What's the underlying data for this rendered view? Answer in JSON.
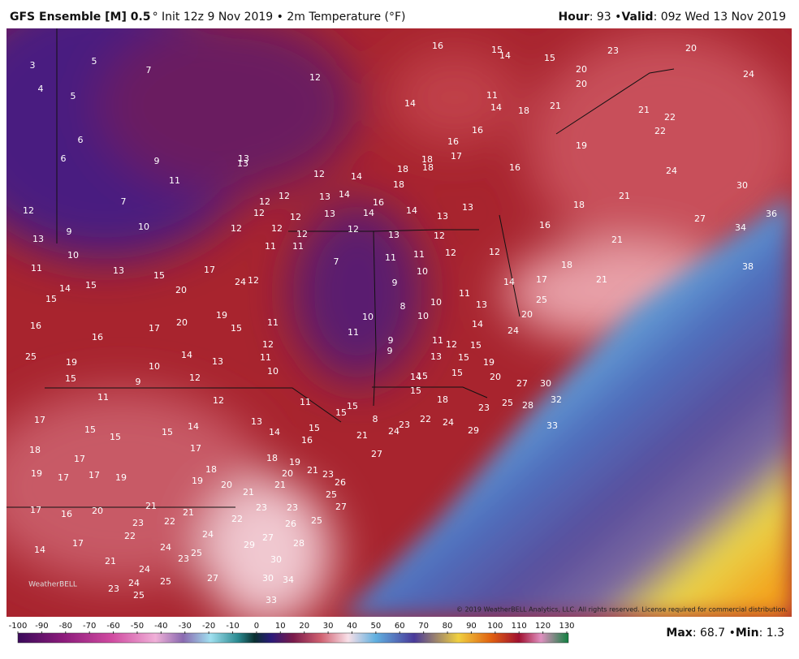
{
  "header": {
    "title": [
      "GFS Ensemble [M] 0.5",
      "° Init 12z 9 Nov 2019 • 2m Temperature (°F)"
    ],
    "valid": [
      "Hour",
      ": 93 • ",
      "Valid",
      ": 09z Wed 13 Nov 2019"
    ]
  },
  "map": {
    "labels": [
      3,
      5,
      7,
      4,
      5,
      6,
      6,
      9,
      11,
      7,
      10,
      9,
      10,
      11,
      13,
      14,
      15,
      15,
      16,
      16,
      17,
      20,
      19,
      15,
      11,
      14,
      13,
      10,
      9,
      12,
      19,
      15,
      25,
      11,
      12,
      13,
      14,
      11,
      15,
      15,
      15,
      16,
      17,
      15,
      15,
      15,
      14,
      18,
      17,
      17,
      18,
      17,
      17,
      19,
      19,
      19,
      20,
      18,
      19,
      20,
      21,
      21,
      21,
      23,
      26,
      25,
      27,
      23,
      23,
      25,
      26,
      22,
      17,
      16,
      20,
      21,
      21,
      22,
      23,
      22,
      24,
      17,
      14,
      24,
      23,
      25,
      29,
      27,
      28,
      30,
      21,
      24,
      24,
      25,
      23,
      25,
      27,
      30,
      34,
      33,
      12,
      14,
      16,
      15,
      14,
      15,
      20,
      20,
      11,
      14,
      18,
      21,
      16,
      16,
      17,
      18,
      18,
      18,
      16,
      18,
      13,
      13,
      12,
      14,
      12,
      12,
      12,
      13,
      14,
      16,
      14,
      13,
      12,
      12,
      12,
      12,
      12,
      14,
      13,
      13,
      16,
      13,
      12,
      11,
      11,
      7,
      11,
      11,
      12,
      12,
      10,
      9,
      8,
      10,
      10,
      11,
      13,
      14,
      17,
      18,
      14,
      10,
      11,
      9,
      9,
      13,
      11,
      12,
      15,
      19,
      15,
      15,
      20,
      24,
      20,
      25,
      14,
      15,
      15,
      18,
      8,
      23,
      22,
      24,
      29,
      27,
      21,
      24,
      23,
      25,
      28,
      27,
      30,
      32,
      33,
      19,
      18,
      21,
      21,
      24,
      22,
      22,
      21,
      23,
      20,
      24,
      30,
      36,
      34,
      38,
      27,
      21,
      12,
      13,
      12,
      11,
      10,
      12,
      24,
      17,
      20,
      15
    ],
    "copyright": "© 2019 WeatherBELL Analytics, LLC. All rights reserved. License required for commercial distribution.",
    "logo": "WeatherBELL"
  },
  "colorbar": {
    "ticks": [
      -100,
      -90,
      -80,
      -70,
      -60,
      -50,
      -40,
      -30,
      -20,
      -10,
      0,
      10,
      20,
      30,
      40,
      50,
      60,
      70,
      80,
      90,
      100,
      110,
      120,
      130
    ]
  },
  "footer": [
    "Max",
    ": 68.7 • ",
    "Min",
    ": 1.3"
  ]
}
